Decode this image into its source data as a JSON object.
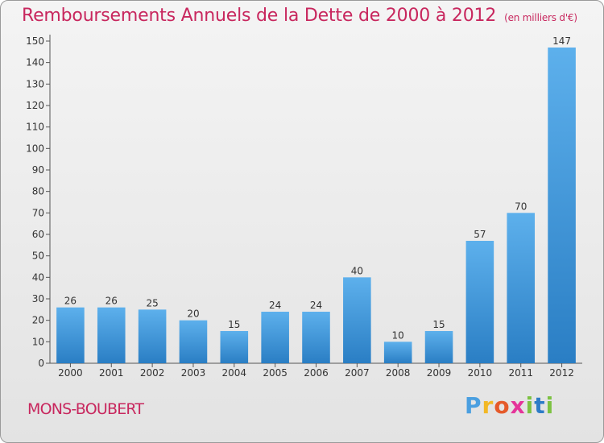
{
  "chart_data": {
    "type": "bar",
    "title": "Remboursements Annuels de la Dette de 2000 à 2012",
    "subtitle": "(en milliers d'€)",
    "xlabel": "",
    "ylabel": "",
    "categories": [
      "2000",
      "2001",
      "2002",
      "2003",
      "2004",
      "2005",
      "2006",
      "2007",
      "2008",
      "2009",
      "2010",
      "2011",
      "2012"
    ],
    "values": [
      26,
      26,
      25,
      20,
      15,
      24,
      24,
      40,
      10,
      15,
      57,
      70,
      147
    ],
    "data_labels": [
      "26",
      "26",
      "25",
      "20",
      "15",
      "24",
      "24",
      "40",
      "10",
      "15",
      "57",
      "70",
      "147"
    ],
    "ylim": [
      0,
      150
    ],
    "yticks": [
      "0",
      "10",
      "20",
      "30",
      "40",
      "50",
      "60",
      "70",
      "80",
      "90",
      "100",
      "110",
      "120",
      "130",
      "140",
      "150"
    ],
    "grid": false,
    "legend": "none",
    "bar_color": "#3d8fd6"
  },
  "commune": "MONS-BOUBERT",
  "logo": {
    "letters": [
      "P",
      "r",
      "o",
      "x",
      "i",
      "t",
      "i"
    ]
  }
}
